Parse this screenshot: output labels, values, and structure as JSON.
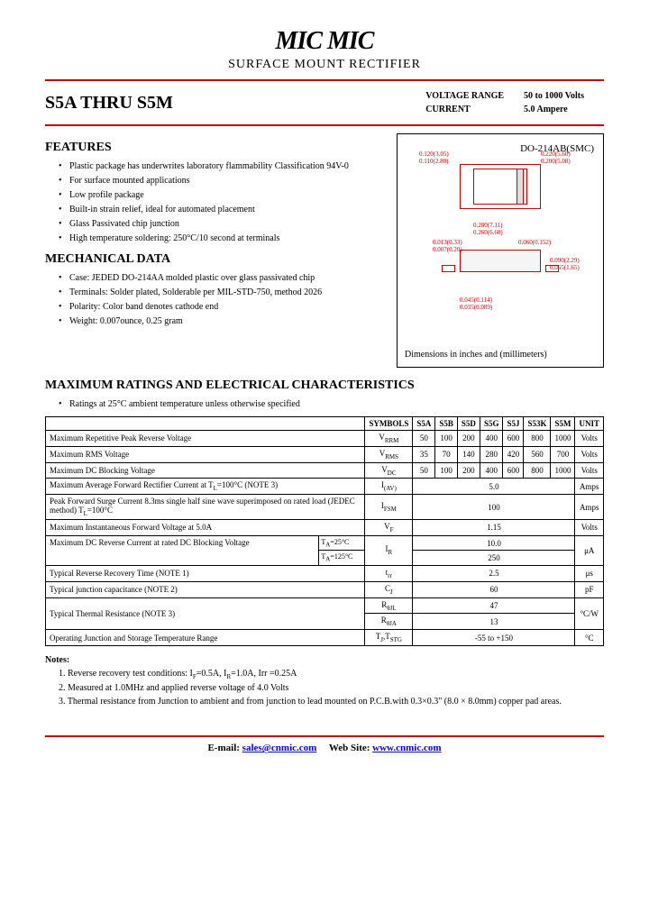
{
  "header": {
    "logo": "MIC MIC",
    "subtitle": "SURFACE MOUNT RECTIFIER"
  },
  "title": "S5A THRU S5M",
  "specs": {
    "voltage_label": "VOLTAGE RANGE",
    "voltage_value": "50 to 1000 Volts",
    "current_label": "CURRENT",
    "current_value": "5.0 Ampere"
  },
  "features": {
    "title": "FEATURES",
    "items": [
      "Plastic package has underwrites laboratory flammability Classification 94V-0",
      "For surface mounted applications",
      "Low profile package",
      "Built-in strain relief, ideal for automated placement",
      "Glass Passivated chip junction",
      "High temperature soldering: 250°C/10 second at terminals"
    ]
  },
  "mechanical": {
    "title": "MECHANICAL DATA",
    "items": [
      "Case: JEDED DO-214AA molded plastic over glass passivated chip",
      "Terminals: Solder plated, Solderable per MIL-STD-750, method 2026",
      "Polarity: Color band denotes cathode end",
      "Weight: 0.007ounce, 0.25 gram"
    ]
  },
  "diagram": {
    "package_label": "DO-214AB(SMC)",
    "footer": "Dimensions in inches and (millimeters)",
    "dims": {
      "d1": "0.120(3.05)\n0.110(2.80)",
      "d2": "0.220(5.60)\n0.200(5.08)",
      "d3": "0.280(7.11)\n0.260(6.60)",
      "d4": "0.013(0.33)\n0.007(0.20)",
      "d5": "0.060(0.152)",
      "d6": "0.045(0.114)\n0.035(0.089)",
      "d7": "0.090(2.29)\n0.065(1.65)"
    }
  },
  "ratings": {
    "title": "MAXIMUM RATINGS AND ELECTRICAL CHARACTERISTICS",
    "note": "Ratings at 25°C ambient temperature unless otherwise specified",
    "headers": [
      "",
      "SYMBOLS",
      "S5A",
      "S5B",
      "S5D",
      "S5G",
      "S5J",
      "S53K",
      "S5M",
      "UNIT"
    ],
    "rows": [
      {
        "label": "Maximum Repetitive Peak Reverse Voltage",
        "symbol": "V<sub>RRM</sub>",
        "values": [
          "50",
          "100",
          "200",
          "400",
          "600",
          "800",
          "1000"
        ],
        "unit": "Volts"
      },
      {
        "label": "Maximum RMS Voltage",
        "symbol": "V<sub>RMS</sub>",
        "values": [
          "35",
          "70",
          "140",
          "280",
          "420",
          "560",
          "700"
        ],
        "unit": "Volts"
      },
      {
        "label": "Maximum DC Blocking Voltage",
        "symbol": "V<sub>DC</sub>",
        "values": [
          "50",
          "100",
          "200",
          "400",
          "600",
          "800",
          "1000"
        ],
        "unit": "Volts"
      },
      {
        "label": "Maximum Average Forward Rectifier Current at T<sub>L</sub>=100°C (NOTE 3)",
        "symbol": "I<sub>(AV)</sub>",
        "span_value": "5.0",
        "unit": "Amps"
      },
      {
        "label": "Peak Forward Surge Current 8.3ms single half sine wave superimposed on rated load (JEDEC method) T<sub>L</sub>=100°C",
        "symbol": "I<sub>FSM</sub>",
        "span_value": "100",
        "unit": "Amps"
      },
      {
        "label": "Maximum Instantaneous Forward Voltage at 5.0A",
        "symbol": "V<sub>F</sub>",
        "span_value": "1.15",
        "unit": "Volts"
      }
    ],
    "reverse_current": {
      "label": "Maximum DC Reverse Current at rated DC Blocking Voltage",
      "t1_label": "T<sub>A</sub>=25°C",
      "t1_val": "10.0",
      "t2_label": "T<sub>A</sub>=125°C",
      "t2_val": "250",
      "symbol": "I<sub>R</sub>",
      "unit": "μA"
    },
    "more_rows": [
      {
        "label": "Typical Reverse Recovery Time (NOTE 1)",
        "symbol": "t<sub>rr</sub>",
        "span_value": "2.5",
        "unit": "μs"
      },
      {
        "label": "Typical junction capacitance (NOTE 2)",
        "symbol": "C<sub>J</sub>",
        "span_value": "60",
        "unit": "pF"
      }
    ],
    "thermal": {
      "label": "Typical Thermal Resistance (NOTE 3)",
      "s1": "R<sub>θJL</sub>",
      "v1": "47",
      "s2": "R<sub>θJA</sub>",
      "v2": "13",
      "unit": "°C/W"
    },
    "temp_row": {
      "label": "Operating Junction and Storage Temperature Range",
      "symbol": "T<sub>J</sub>,T<sub>STG</sub>",
      "span_value": "-55 to +150",
      "unit": "°C"
    }
  },
  "notes": {
    "title": "Notes:",
    "items": [
      "1. Reverse recovery test conditions: I<sub>F</sub>=0.5A, I<sub>R</sub>=1.0A, Irr =0.25A",
      "2. Measured at 1.0MHz and applied reverse voltage of 4.0 Volts",
      "3. Thermal resistance from Junction to ambient and from junction to lead mounted on P.C.B.with 0.3×0.3\" (8.0 × 8.0mm) copper pad areas."
    ]
  },
  "footer": {
    "email_label": "E-mail:",
    "email": "sales@cnmic.com",
    "web_label": "Web Site:",
    "web": "www.cnmic.com"
  }
}
